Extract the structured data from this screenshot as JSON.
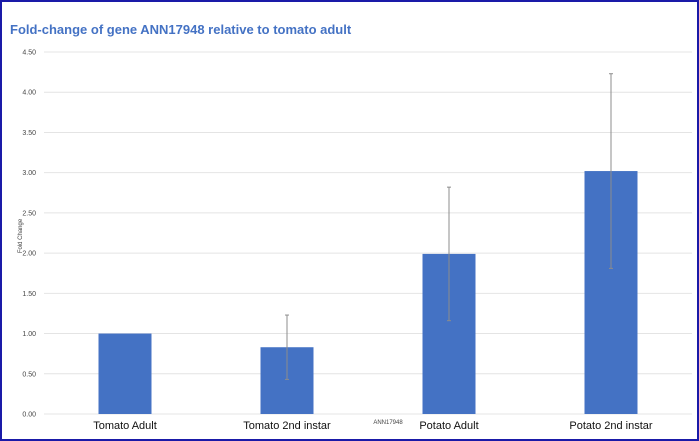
{
  "chart_data": {
    "type": "bar",
    "title": "Fold-change of gene ANN17948 relative to tomato adult",
    "xlabel": "ANN17948",
    "ylabel": "Fold Change",
    "categories": [
      "Tomato Adult",
      "Tomato 2nd instar",
      "Potato Adult",
      "Potato 2nd instar"
    ],
    "series": [
      {
        "values": [
          1.0,
          0.83,
          1.99,
          3.02
        ],
        "error": [
          0.0,
          0.4,
          0.83,
          1.21
        ]
      }
    ],
    "ylim": [
      0,
      4.5
    ],
    "yticks": [
      "0.00",
      "0.50",
      "1.00",
      "1.50",
      "2.00",
      "2.50",
      "3.00",
      "3.50",
      "4.00",
      "4.50"
    ],
    "grid": true,
    "legend": "none",
    "colors": {
      "bar": "#4472c4",
      "grid": "#e4e4e4",
      "title": "#4472c4",
      "frame": "#1a1aa8",
      "error": "#8c8c8c"
    }
  }
}
